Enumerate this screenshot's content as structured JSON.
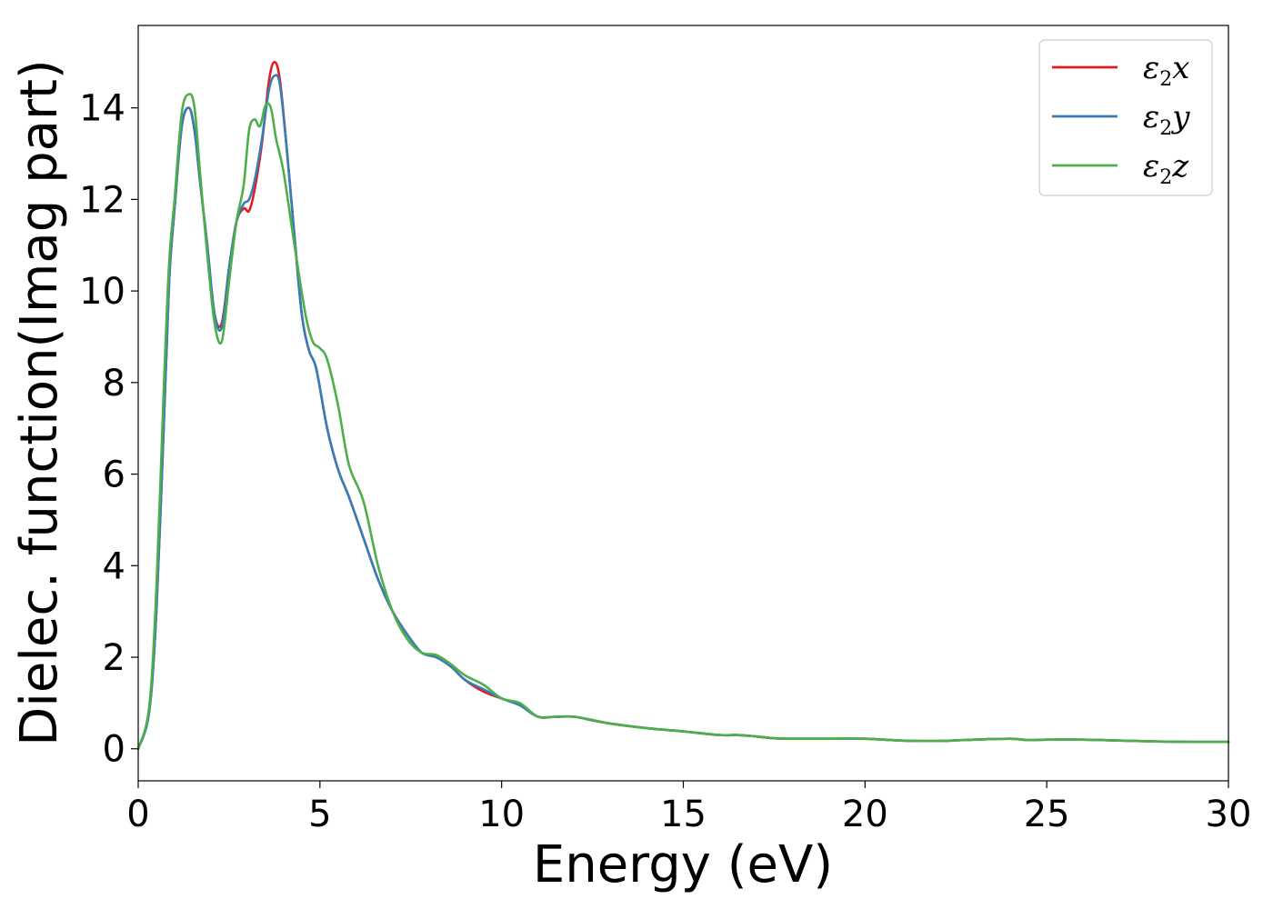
{
  "chart_data": {
    "type": "line",
    "title": "",
    "xlabel": "Energy (eV)",
    "ylabel": "Dielec. function(Imag part)",
    "xlim": [
      0,
      30
    ],
    "ylim": [
      -0.7,
      15.8
    ],
    "xticks": [
      0,
      5,
      10,
      15,
      20,
      25,
      30
    ],
    "yticks": [
      0,
      2,
      4,
      6,
      8,
      10,
      12,
      14
    ],
    "grid": false,
    "legend_position": "top-right",
    "series": [
      {
        "name": "ε₂x",
        "legend_base": "ε",
        "legend_sub": "2",
        "legend_var": "x",
        "color": "#e41a1c",
        "x": [
          0,
          0.3,
          0.5,
          0.7,
          0.85,
          1.0,
          1.2,
          1.4,
          1.55,
          1.7,
          1.9,
          2.1,
          2.3,
          2.5,
          2.7,
          2.9,
          3.05,
          3.2,
          3.4,
          3.6,
          3.75,
          3.9,
          4.1,
          4.3,
          4.5,
          4.7,
          4.9,
          5.2,
          5.5,
          5.8,
          6.2,
          6.6,
          7.0,
          7.4,
          7.8,
          8.2,
          8.6,
          9.0,
          9.5,
          10.0,
          10.5,
          11.0,
          11.5,
          12.0,
          12.5,
          13.0,
          14.0,
          15.0,
          16.0,
          16.5,
          17.0,
          17.5,
          18.0,
          19.0,
          20.0,
          21.0,
          22.0,
          23.0,
          24.0,
          24.5,
          25.0,
          26.0,
          27.0,
          28.0,
          29.0,
          30.0
        ],
        "values": [
          0.0,
          0.8,
          3.0,
          7.0,
          10.2,
          11.8,
          13.6,
          14.0,
          13.5,
          12.4,
          11.0,
          9.5,
          9.3,
          10.5,
          11.5,
          11.8,
          11.75,
          12.2,
          13.2,
          14.6,
          15.0,
          14.6,
          13.0,
          11.2,
          9.5,
          8.7,
          8.3,
          7.0,
          6.1,
          5.5,
          4.6,
          3.7,
          3.0,
          2.5,
          2.1,
          2.0,
          1.8,
          1.5,
          1.25,
          1.1,
          0.95,
          0.7,
          0.7,
          0.7,
          0.62,
          0.55,
          0.45,
          0.38,
          0.3,
          0.3,
          0.27,
          0.23,
          0.22,
          0.22,
          0.22,
          0.18,
          0.17,
          0.2,
          0.22,
          0.19,
          0.2,
          0.2,
          0.18,
          0.16,
          0.15,
          0.15
        ]
      },
      {
        "name": "ε₂y",
        "legend_base": "ε",
        "legend_sub": "2",
        "legend_var": "y",
        "color": "#377eb8",
        "x": [
          0,
          0.3,
          0.5,
          0.7,
          0.85,
          1.0,
          1.2,
          1.4,
          1.55,
          1.7,
          1.9,
          2.1,
          2.3,
          2.5,
          2.7,
          2.9,
          3.05,
          3.2,
          3.4,
          3.6,
          3.75,
          3.9,
          4.1,
          4.3,
          4.5,
          4.7,
          4.9,
          5.2,
          5.5,
          5.8,
          6.2,
          6.6,
          7.0,
          7.4,
          7.8,
          8.2,
          8.6,
          9.0,
          9.5,
          10.0,
          10.5,
          11.0,
          11.5,
          12.0,
          12.5,
          13.0,
          14.0,
          15.0,
          16.0,
          16.5,
          17.0,
          17.5,
          18.0,
          19.0,
          20.0,
          21.0,
          22.0,
          23.0,
          24.0,
          24.5,
          25.0,
          26.0,
          27.0,
          28.0,
          29.0,
          30.0
        ],
        "values": [
          0.0,
          0.8,
          3.0,
          7.0,
          10.2,
          11.8,
          13.6,
          14.0,
          13.5,
          12.4,
          11.0,
          9.5,
          9.2,
          10.5,
          11.5,
          11.9,
          12.0,
          12.4,
          13.3,
          14.4,
          14.7,
          14.5,
          13.0,
          11.2,
          9.5,
          8.7,
          8.3,
          7.0,
          6.1,
          5.5,
          4.6,
          3.7,
          3.0,
          2.5,
          2.1,
          2.0,
          1.8,
          1.5,
          1.3,
          1.1,
          0.95,
          0.7,
          0.7,
          0.7,
          0.62,
          0.55,
          0.45,
          0.38,
          0.3,
          0.3,
          0.27,
          0.23,
          0.22,
          0.22,
          0.22,
          0.18,
          0.17,
          0.2,
          0.22,
          0.19,
          0.2,
          0.2,
          0.18,
          0.16,
          0.15,
          0.15
        ]
      },
      {
        "name": "ε₂z",
        "legend_base": "ε",
        "legend_sub": "2",
        "legend_var": "z",
        "color": "#4daf4a",
        "x": [
          0,
          0.3,
          0.5,
          0.7,
          0.85,
          1.0,
          1.2,
          1.4,
          1.55,
          1.7,
          1.9,
          2.1,
          2.3,
          2.5,
          2.7,
          2.9,
          3.05,
          3.2,
          3.35,
          3.5,
          3.65,
          3.8,
          4.0,
          4.3,
          4.6,
          4.8,
          5.0,
          5.2,
          5.5,
          5.8,
          6.2,
          6.6,
          7.0,
          7.4,
          7.8,
          8.2,
          8.6,
          9.0,
          9.5,
          10.0,
          10.5,
          11.0,
          11.5,
          12.0,
          12.5,
          13.0,
          14.0,
          15.0,
          16.0,
          16.5,
          17.0,
          17.5,
          18.0,
          19.0,
          20.0,
          21.0,
          22.0,
          23.0,
          24.0,
          24.5,
          25.0,
          26.0,
          27.0,
          28.0,
          29.0,
          30.0
        ],
        "values": [
          0.0,
          0.9,
          3.5,
          7.8,
          10.6,
          12.0,
          13.9,
          14.3,
          14.0,
          12.6,
          10.8,
          9.3,
          8.9,
          10.2,
          11.5,
          12.3,
          13.5,
          13.75,
          13.6,
          14.05,
          14.0,
          13.3,
          12.6,
          11.0,
          9.5,
          8.9,
          8.75,
          8.5,
          7.5,
          6.2,
          5.4,
          4.0,
          3.0,
          2.4,
          2.1,
          2.05,
          1.85,
          1.6,
          1.4,
          1.1,
          1.0,
          0.7,
          0.7,
          0.7,
          0.63,
          0.55,
          0.45,
          0.38,
          0.3,
          0.3,
          0.27,
          0.23,
          0.22,
          0.22,
          0.22,
          0.18,
          0.17,
          0.2,
          0.22,
          0.19,
          0.2,
          0.2,
          0.18,
          0.16,
          0.15,
          0.15
        ]
      }
    ]
  }
}
